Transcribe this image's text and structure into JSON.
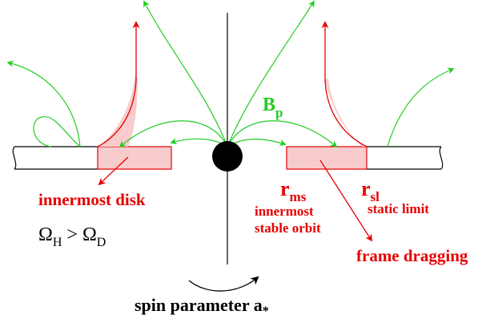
{
  "labels": {
    "bp_main": "B",
    "bp_sub": "p",
    "rms_main": "r",
    "rms_sub": "ms",
    "rsl_main": "r",
    "rsl_sub": "sl",
    "innermost_stable_orbit_1": "innermost",
    "innermost_stable_orbit_2": "stable orbit",
    "static_limit": "static limit",
    "innermost_disk": "innermost disk",
    "frame_dragging": "frame dragging",
    "omega_left": "Ω",
    "omega_left_sub": "H",
    "omega_gt": " > ",
    "omega_right": "Ω",
    "omega_right_sub": "D",
    "spin_parameter": "spin parameter a",
    "spin_star": "*"
  },
  "colors": {
    "field_lines": "#22cc22",
    "red": "#e60000",
    "disk_fill": "#f8cccc",
    "black": "#000000"
  }
}
